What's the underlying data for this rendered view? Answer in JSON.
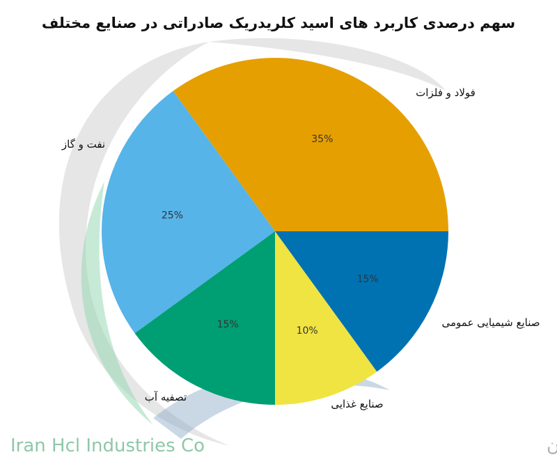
{
  "chart_data": {
    "type": "pie",
    "title": "سهم درصدی کاربرد های اسید کلریدریک صادراتی در صنایع مختلف",
    "categories": [
      "فولاد و فلزات",
      "نفت و گاز",
      "تصفیه آب",
      "صنایع غذایی",
      "صنایع شیمیایی عمومی"
    ],
    "values": [
      35,
      25,
      15,
      10,
      15
    ],
    "value_labels": [
      "35%",
      "25%",
      "15%",
      "10%",
      "15%"
    ],
    "colors": [
      "#E69F00",
      "#56B4E9",
      "#009E73",
      "#F0E442",
      "#0072B2"
    ],
    "start_angle": 0,
    "direction": "counterclockwise",
    "legend": "none"
  },
  "watermark": {
    "text_fa": "شرکت صنایع کلریدریک ایران",
    "text_en": "Iran Hcl Industries Co"
  }
}
